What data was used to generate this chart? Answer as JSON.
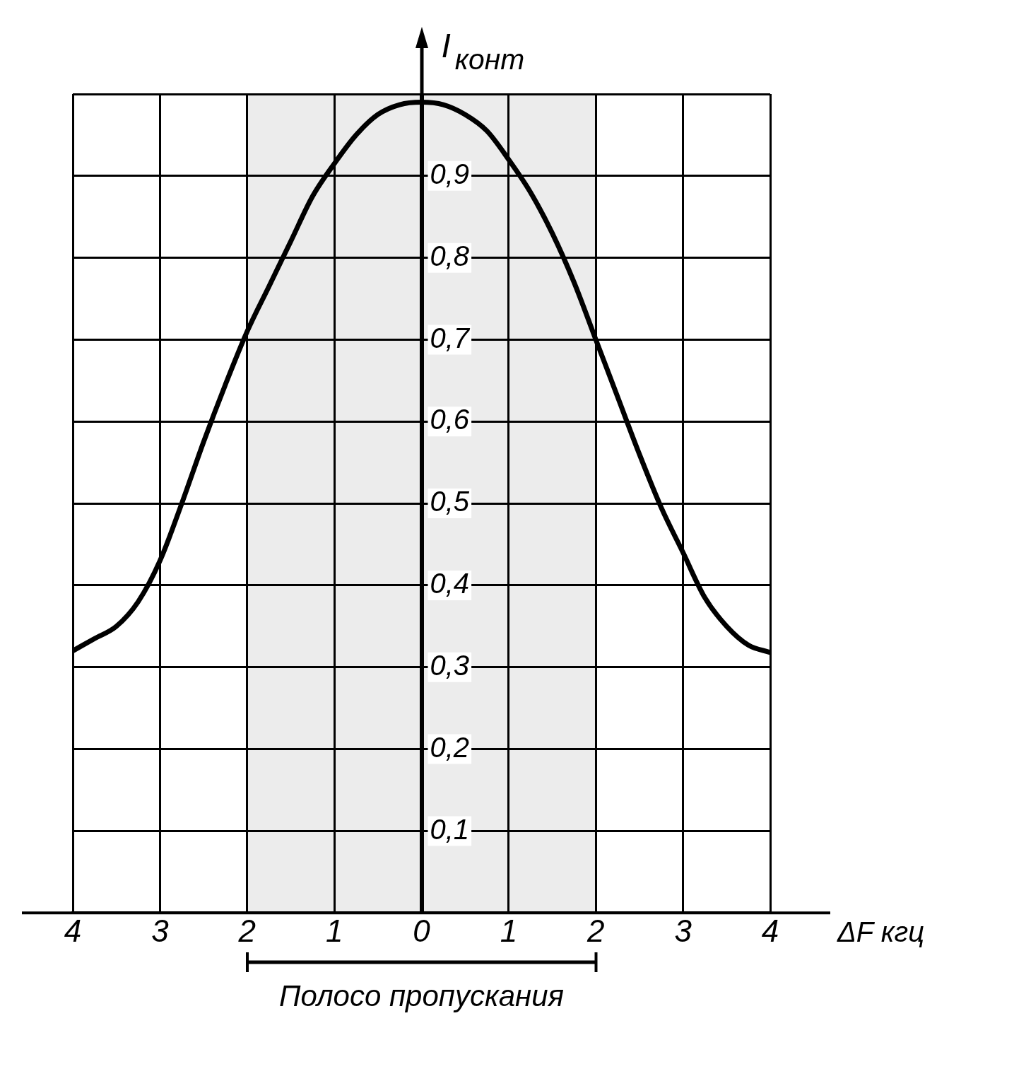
{
  "chart_data": {
    "type": "line",
    "xlabel": "ΔF кгц",
    "ylabel": "I$_{конт}$",
    "x": [
      -4,
      -3.75,
      -3.5,
      -3.25,
      -3,
      -2.75,
      -2.5,
      -2.25,
      -2,
      -1.75,
      -1.5,
      -1.25,
      -1,
      -0.75,
      -0.5,
      -0.25,
      0,
      0.25,
      0.5,
      0.75,
      1,
      1.25,
      1.5,
      1.75,
      2,
      2.25,
      2.5,
      2.75,
      3,
      3.25,
      3.5,
      3.75,
      4
    ],
    "series": [
      {
        "color": "#000000",
        "values": [
          0.32,
          0.335,
          0.35,
          0.38,
          0.43,
          0.5,
          0.575,
          0.645,
          0.71,
          0.765,
          0.82,
          0.875,
          0.915,
          0.95,
          0.975,
          0.987,
          0.99,
          0.987,
          0.975,
          0.955,
          0.92,
          0.88,
          0.83,
          0.77,
          0.7,
          0.63,
          0.56,
          0.495,
          0.44,
          0.385,
          0.35,
          0.327,
          0.318
        ]
      }
    ],
    "xlim": [
      -4,
      4
    ],
    "ylim": [
      0,
      1
    ],
    "xticks": [
      {
        "value": -4,
        "label": "4"
      },
      {
        "value": -3,
        "label": "3"
      },
      {
        "value": -2,
        "label": "2"
      },
      {
        "value": -1,
        "label": "1"
      },
      0,
      1,
      2,
      3,
      4
    ],
    "yticks": [
      {
        "value": 0,
        "label": null
      },
      {
        "value": 0.1,
        "label": "0,1"
      },
      {
        "value": 0.2,
        "label": "0,2"
      },
      {
        "value": 0.3,
        "label": "0,3"
      },
      {
        "value": 0.4,
        "label": "0,4"
      },
      {
        "value": 0.5,
        "label": "0,5"
      },
      {
        "value": 0.6,
        "label": "0,6"
      },
      {
        "value": 0.7,
        "label": "0,7"
      },
      {
        "value": 0.8,
        "label": "0,8"
      },
      {
        "value": 0.9,
        "label": "0,9"
      },
      {
        "value": 1,
        "label": null
      }
    ],
    "grid": true,
    "marker": "none",
    "line_style": "solid",
    "bands": [
      {
        "axis": "x",
        "from": -2,
        "to": 2,
        "label": "Полосо пропускания",
        "color": "#ececec"
      }
    ]
  }
}
